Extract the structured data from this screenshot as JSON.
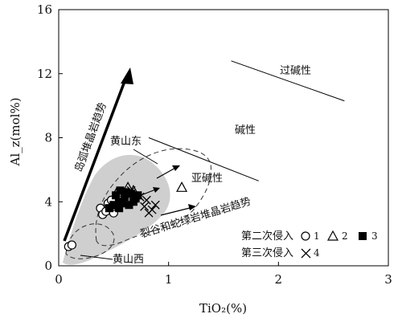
{
  "chart_data": {
    "type": "scatter",
    "xlabel": "TiO₂(%)",
    "ylabel": "Al_z(mol%)",
    "xlim": [
      0,
      3
    ],
    "ylim": [
      0,
      16
    ],
    "x_ticks": [
      "0",
      "1",
      "2",
      "3"
    ],
    "y_ticks": [
      "0",
      "4",
      "8",
      "12",
      "16"
    ],
    "grid": false,
    "annotations": {
      "arc_trend": "岛弧堆晶岩趋势",
      "rift_trend": "裂谷和蛇绿岩堆晶岩趋势",
      "peralkaline": "过碱性",
      "alkaline": "碱性",
      "subalkaline": "亚碱性",
      "huangshan_east": "黄山东",
      "huangshan_west": "黄山西"
    },
    "legend": {
      "second_intrusion": "第二次侵入",
      "third_intrusion": "第三次侵入",
      "items": [
        {
          "key": "1",
          "marker": "circle"
        },
        {
          "key": "2",
          "marker": "triangle"
        },
        {
          "key": "3",
          "marker": "square"
        },
        {
          "key": "4",
          "marker": "x"
        }
      ]
    },
    "series": [
      {
        "marker": "circle",
        "points": [
          [
            0.09,
            1.2
          ],
          [
            0.12,
            1.3
          ],
          [
            0.38,
            3.6
          ],
          [
            0.4,
            3.2
          ],
          [
            0.43,
            3.4
          ],
          [
            0.45,
            3.9
          ],
          [
            0.48,
            4.1
          ],
          [
            0.47,
            3.6
          ],
          [
            0.5,
            3.3
          ]
        ]
      },
      {
        "marker": "triangle",
        "points": [
          [
            0.48,
            3.7
          ],
          [
            0.53,
            4.6
          ],
          [
            0.63,
            4.9
          ],
          [
            0.68,
            4.7
          ],
          [
            1.12,
            4.9
          ]
        ]
      },
      {
        "marker": "square",
        "points": [
          [
            0.46,
            3.6
          ],
          [
            0.5,
            3.8
          ],
          [
            0.52,
            4.4
          ],
          [
            0.55,
            4.0
          ],
          [
            0.56,
            4.7
          ],
          [
            0.58,
            3.9
          ],
          [
            0.6,
            4.3
          ],
          [
            0.61,
            4.6
          ],
          [
            0.64,
            3.8
          ],
          [
            0.66,
            4.5
          ],
          [
            0.7,
            4.2
          ],
          [
            0.72,
            4.4
          ],
          [
            0.68,
            4.0
          ],
          [
            0.55,
            3.6
          ]
        ]
      },
      {
        "marker": "x",
        "points": [
          [
            0.66,
            4.7
          ],
          [
            0.74,
            4.3
          ],
          [
            0.8,
            4.1
          ],
          [
            0.78,
            3.7
          ],
          [
            0.85,
            3.5
          ],
          [
            0.88,
            3.8
          ],
          [
            0.82,
            3.3
          ]
        ]
      }
    ],
    "boundary_lines": [
      {
        "label": "peralkaline",
        "points": [
          [
            1.57,
            12.8
          ],
          [
            2.6,
            10.3
          ]
        ]
      },
      {
        "label": "alkaline",
        "points": [
          [
            0.82,
            8.0
          ],
          [
            1.82,
            5.3
          ]
        ]
      }
    ]
  }
}
